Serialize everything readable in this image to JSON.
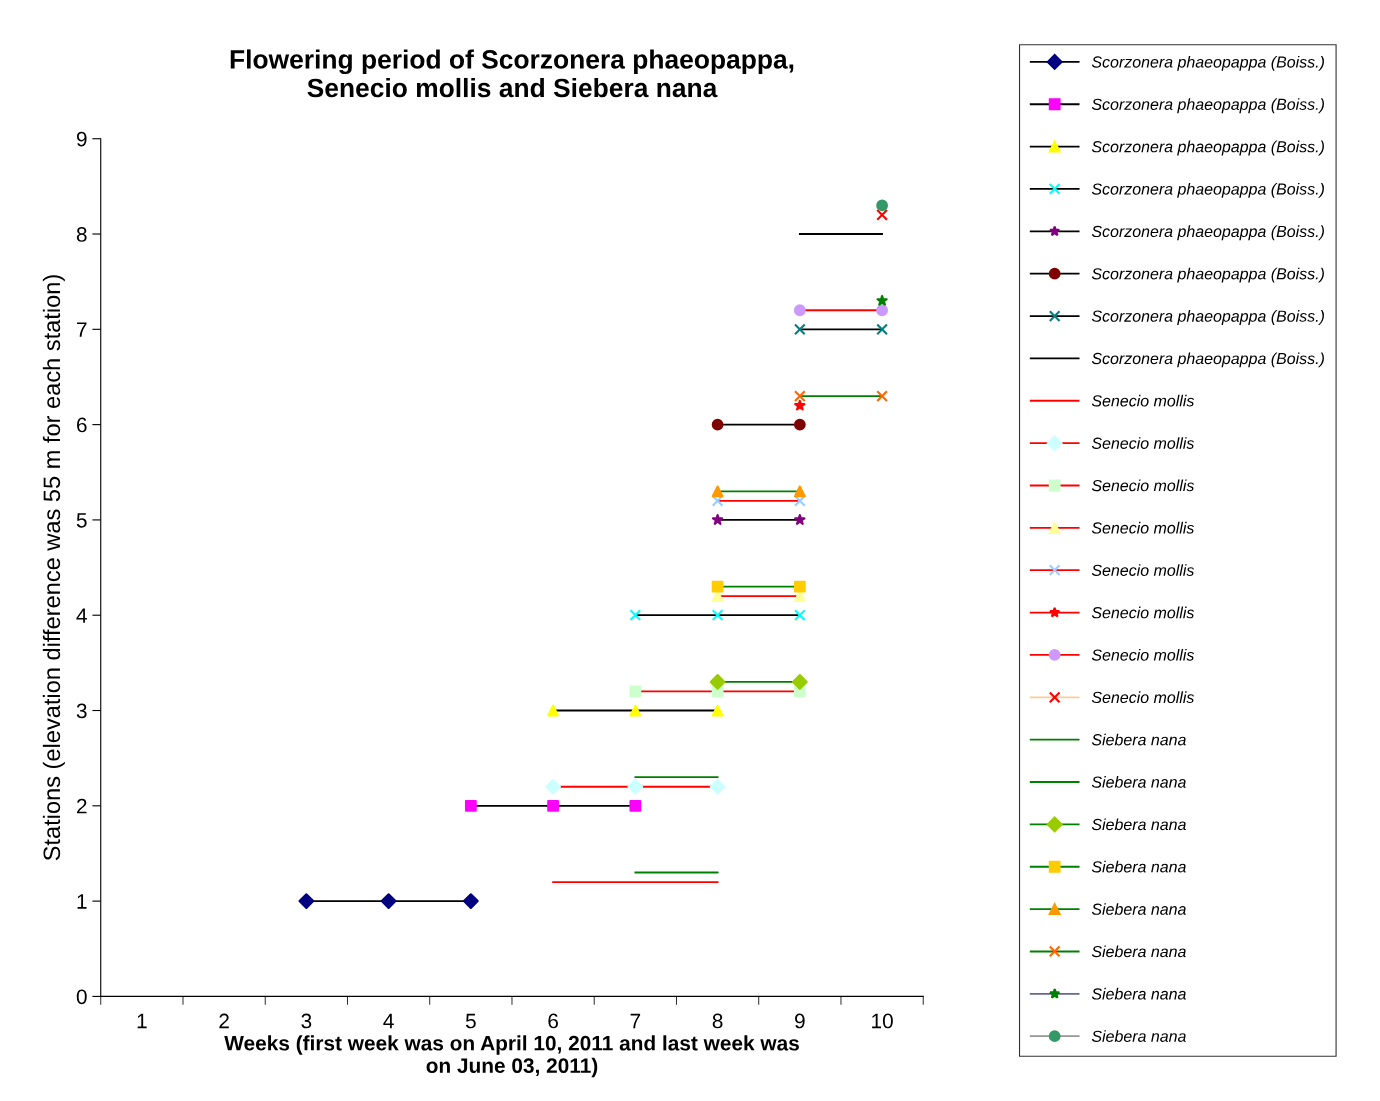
{
  "chart_data": {
    "type": "line",
    "title": "Flowering period of Scorzonera phaeopappa,\nSenecio mollis and Siebera nana",
    "xlabel": "Weeks (first week was on April 10, 2011 and last week was\non June 03, 2011)",
    "ylabel": "Stations (elevation difference was 55 m for each station)",
    "categories": [
      "1",
      "2",
      "3",
      "4",
      "5",
      "6",
      "7",
      "8",
      "9",
      "10"
    ],
    "ylim": [
      0,
      9
    ],
    "yticks": [
      0,
      1,
      2,
      3,
      4,
      5,
      6,
      7,
      8,
      9
    ],
    "grid": false,
    "legend": "right",
    "series": [
      {
        "name": "Scorzonera phaeopappa (Boiss.)",
        "color": "#000000",
        "marker": "diamond",
        "colors": [
          null,
          null,
          "#000080",
          "#000080",
          "#000080",
          null,
          null,
          null,
          null,
          null
        ],
        "values": [
          null,
          null,
          1,
          1,
          1,
          null,
          null,
          null,
          null,
          null
        ]
      },
      {
        "name": "Scorzonera phaeopappa (Boiss.)",
        "color": "#000000",
        "marker": "square",
        "colors": [
          null,
          null,
          null,
          null,
          "#ff00ff",
          "#ff00ff",
          "#ff00ff",
          null,
          null,
          null
        ],
        "values": [
          null,
          null,
          null,
          null,
          2,
          2,
          2,
          null,
          null,
          null
        ]
      },
      {
        "name": "Scorzonera phaeopappa (Boiss.)",
        "color": "#000000",
        "marker": "triangle",
        "colors": [
          null,
          null,
          null,
          null,
          null,
          "#ffff00",
          "#ffff00",
          "#ffff00",
          null,
          null
        ],
        "values": [
          null,
          null,
          null,
          null,
          null,
          3,
          3,
          3,
          null,
          null
        ]
      },
      {
        "name": "Scorzonera phaeopappa (Boiss.)",
        "color": "#000000",
        "marker": "cross",
        "colors": [
          null,
          null,
          null,
          null,
          null,
          null,
          "#00ffff",
          "#00ffff",
          "#00ffff",
          null
        ],
        "values": [
          null,
          null,
          null,
          null,
          null,
          null,
          4,
          4,
          4,
          null
        ]
      },
      {
        "name": "Scorzonera phaeopappa (Boiss.)",
        "color": "#000000",
        "marker": "star",
        "colors": [
          null,
          null,
          null,
          null,
          null,
          null,
          null,
          "#800080",
          "#800080",
          null
        ],
        "values": [
          null,
          null,
          null,
          null,
          null,
          null,
          null,
          5,
          5,
          null
        ]
      },
      {
        "name": "Scorzonera phaeopappa (Boiss.)",
        "color": "#000000",
        "marker": "circle",
        "colors": [
          null,
          null,
          null,
          null,
          null,
          null,
          null,
          "#800000",
          "#800000",
          null
        ],
        "values": [
          null,
          null,
          null,
          null,
          null,
          null,
          null,
          6,
          6,
          null
        ]
      },
      {
        "name": "Scorzonera phaeopappa (Boiss.)",
        "color": "#000000",
        "marker": "cross",
        "colors": [
          null,
          null,
          null,
          null,
          null,
          null,
          null,
          null,
          "#008080",
          "#008080"
        ],
        "values": [
          null,
          null,
          null,
          null,
          null,
          null,
          null,
          null,
          7,
          7
        ]
      },
      {
        "name": "Scorzonera phaeopappa (Boiss.)",
        "color": "#000000",
        "marker": "none",
        "values": [
          null,
          null,
          null,
          null,
          null,
          null,
          null,
          null,
          8,
          8
        ]
      },
      {
        "name": "Senecio mollis",
        "color": "#ff0000",
        "marker": "none",
        "values": [
          null,
          null,
          null,
          null,
          null,
          1.2,
          1.2,
          1.2,
          null,
          null
        ]
      },
      {
        "name": "Senecio mollis",
        "color": "#ff0000",
        "marker": "diamond",
        "colors": [
          null,
          null,
          null,
          null,
          null,
          "#ccffff",
          "#ccffff",
          "#ccffff",
          null,
          null
        ],
        "values": [
          null,
          null,
          null,
          null,
          null,
          2.2,
          2.2,
          2.2,
          null,
          null
        ]
      },
      {
        "name": "Senecio mollis",
        "color": "#ff0000",
        "marker": "square",
        "colors": [
          null,
          null,
          null,
          null,
          null,
          null,
          "#ccffcc",
          "#ccffcc",
          "#ccffcc",
          null
        ],
        "values": [
          null,
          null,
          null,
          null,
          null,
          null,
          3.2,
          3.2,
          3.2,
          null
        ]
      },
      {
        "name": "Senecio mollis",
        "color": "#ff0000",
        "marker": "triangle",
        "colors": [
          null,
          null,
          null,
          null,
          null,
          null,
          null,
          "#ffff99",
          "#ffff99",
          null
        ],
        "values": [
          null,
          null,
          null,
          null,
          null,
          null,
          null,
          4.2,
          4.2,
          null
        ]
      },
      {
        "name": "Senecio mollis",
        "color": "#ff0000",
        "marker": "cross",
        "colors": [
          null,
          null,
          null,
          null,
          null,
          null,
          null,
          "#99ccff",
          "#99ccff",
          null
        ],
        "values": [
          null,
          null,
          null,
          null,
          null,
          null,
          null,
          5.2,
          5.2,
          null
        ]
      },
      {
        "name": "Senecio mollis",
        "color": "#ff0000",
        "marker": "star",
        "colors": [
          null,
          null,
          null,
          null,
          null,
          null,
          null,
          null,
          "#ff0000",
          null
        ],
        "values": [
          null,
          null,
          null,
          null,
          null,
          null,
          null,
          null,
          6.2,
          null
        ]
      },
      {
        "name": "Senecio mollis",
        "color": "#ff0000",
        "marker": "circle",
        "colors": [
          null,
          null,
          null,
          null,
          null,
          null,
          null,
          null,
          "#cc99ff",
          "#cc99ff"
        ],
        "values": [
          null,
          null,
          null,
          null,
          null,
          null,
          null,
          null,
          7.2,
          7.2
        ]
      },
      {
        "name": "Senecio mollis",
        "color": "#ffcc99",
        "marker": "cross",
        "colors": [
          null,
          null,
          null,
          null,
          null,
          null,
          null,
          null,
          null,
          "#ff0000"
        ],
        "values": [
          null,
          null,
          null,
          null,
          null,
          null,
          null,
          null,
          null,
          8.2
        ]
      },
      {
        "name": "Siebera nana",
        "color": "#008000",
        "marker": "none",
        "values": [
          null,
          null,
          null,
          null,
          null,
          null,
          1.3,
          1.3,
          null,
          null
        ]
      },
      {
        "name": "Siebera nana",
        "color": "#008000",
        "marker": "none",
        "values": [
          null,
          null,
          null,
          null,
          null,
          null,
          2.3,
          2.3,
          null,
          null
        ]
      },
      {
        "name": "Siebera nana",
        "color": "#008000",
        "marker": "diamond",
        "colors": [
          null,
          null,
          null,
          null,
          null,
          null,
          null,
          "#99cc00",
          "#99cc00",
          null
        ],
        "values": [
          null,
          null,
          null,
          null,
          null,
          null,
          null,
          3.3,
          3.3,
          null
        ]
      },
      {
        "name": "Siebera nana",
        "color": "#008000",
        "marker": "square",
        "colors": [
          null,
          null,
          null,
          null,
          null,
          null,
          null,
          "#ffcc00",
          "#ffcc00",
          null
        ],
        "values": [
          null,
          null,
          null,
          null,
          null,
          null,
          null,
          4.3,
          4.3,
          null
        ]
      },
      {
        "name": "Siebera nana",
        "color": "#008000",
        "marker": "triangle",
        "colors": [
          null,
          null,
          null,
          null,
          null,
          null,
          null,
          "#ff9900",
          "#ff9900",
          null
        ],
        "values": [
          null,
          null,
          null,
          null,
          null,
          null,
          null,
          5.3,
          5.3,
          null
        ]
      },
      {
        "name": "Siebera nana",
        "color": "#008000",
        "marker": "cross",
        "colors": [
          null,
          null,
          null,
          null,
          null,
          null,
          null,
          null,
          "#ff6600",
          "#ff6600"
        ],
        "values": [
          null,
          null,
          null,
          null,
          null,
          null,
          null,
          null,
          6.3,
          6.3
        ]
      },
      {
        "name": "Siebera nana",
        "color": "#666699",
        "marker": "star",
        "colors": [
          null,
          null,
          null,
          null,
          null,
          null,
          null,
          null,
          null,
          "#008000"
        ],
        "values": [
          null,
          null,
          null,
          null,
          null,
          null,
          null,
          null,
          null,
          7.3
        ]
      },
      {
        "name": "Siebera nana",
        "color": "#969696",
        "marker": "circle",
        "colors": [
          null,
          null,
          null,
          null,
          null,
          null,
          null,
          null,
          null,
          "#339966"
        ],
        "values": [
          null,
          null,
          null,
          null,
          null,
          null,
          null,
          null,
          null,
          8.3
        ]
      }
    ]
  }
}
